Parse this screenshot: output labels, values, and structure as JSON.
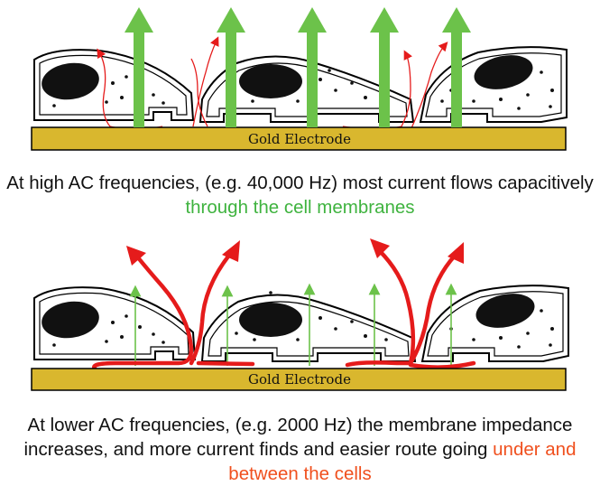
{
  "top_panel": {
    "electrode_label": "Gold Electrode",
    "caption_plain": "At high AC frequencies, (e.g. 40,000 Hz) most current flows capacitively ",
    "caption_highlight": "through the cell membranes"
  },
  "bottom_panel": {
    "electrode_label": "Gold Electrode",
    "caption_plain": "At lower AC frequencies, (e.g. 2000 Hz) the membrane impedance increases, and more current finds and easier route going ",
    "caption_highlight": "under and between the cells"
  },
  "colors": {
    "electrode_fill": "#d9b72e",
    "green_arrow": "#6cc24a",
    "red_current": "#e51b1b",
    "highlight_green": "#3fb33f",
    "highlight_red": "#f0501e"
  }
}
